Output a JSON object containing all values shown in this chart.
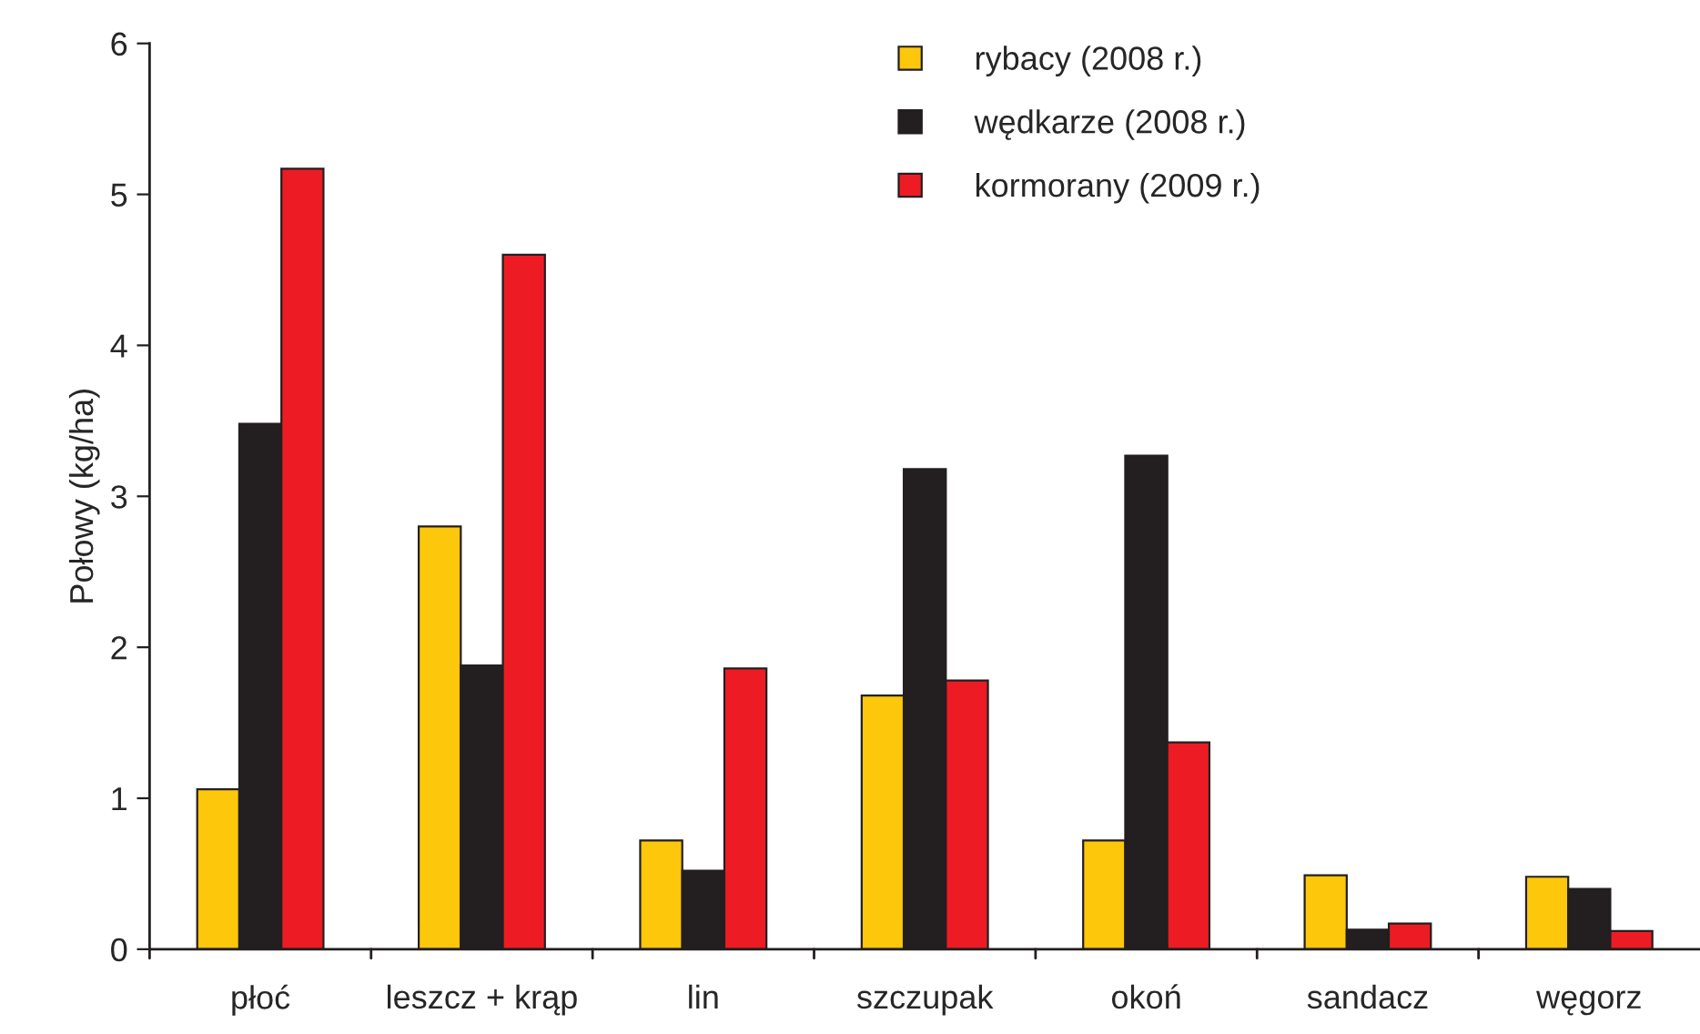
{
  "chart_data": {
    "type": "bar",
    "ylabel": "Połowy (kg/ha)",
    "categories": [
      "płoć",
      "leszcz + krąp",
      "lin",
      "szczupak",
      "okoń",
      "sandacz",
      "węgorz"
    ],
    "series": [
      {
        "name": "rybacy (2008 r.)",
        "color": "#fdc70c",
        "values": [
          1.06,
          2.8,
          0.72,
          1.68,
          0.72,
          0.49,
          0.48
        ]
      },
      {
        "name": "wędkarze (2008 r.)",
        "color": "#231f20",
        "values": [
          3.48,
          1.88,
          0.52,
          3.18,
          3.27,
          0.13,
          0.4
        ]
      },
      {
        "name": "kormorany (2009 r.)",
        "color": "#ed1c24",
        "values": [
          5.17,
          4.6,
          1.86,
          1.78,
          1.37,
          0.17,
          0.12
        ]
      }
    ],
    "ylim": [
      0,
      6
    ],
    "yticks": [
      0,
      1,
      2,
      3,
      4,
      5,
      6
    ],
    "grid": false,
    "legend": "top"
  }
}
